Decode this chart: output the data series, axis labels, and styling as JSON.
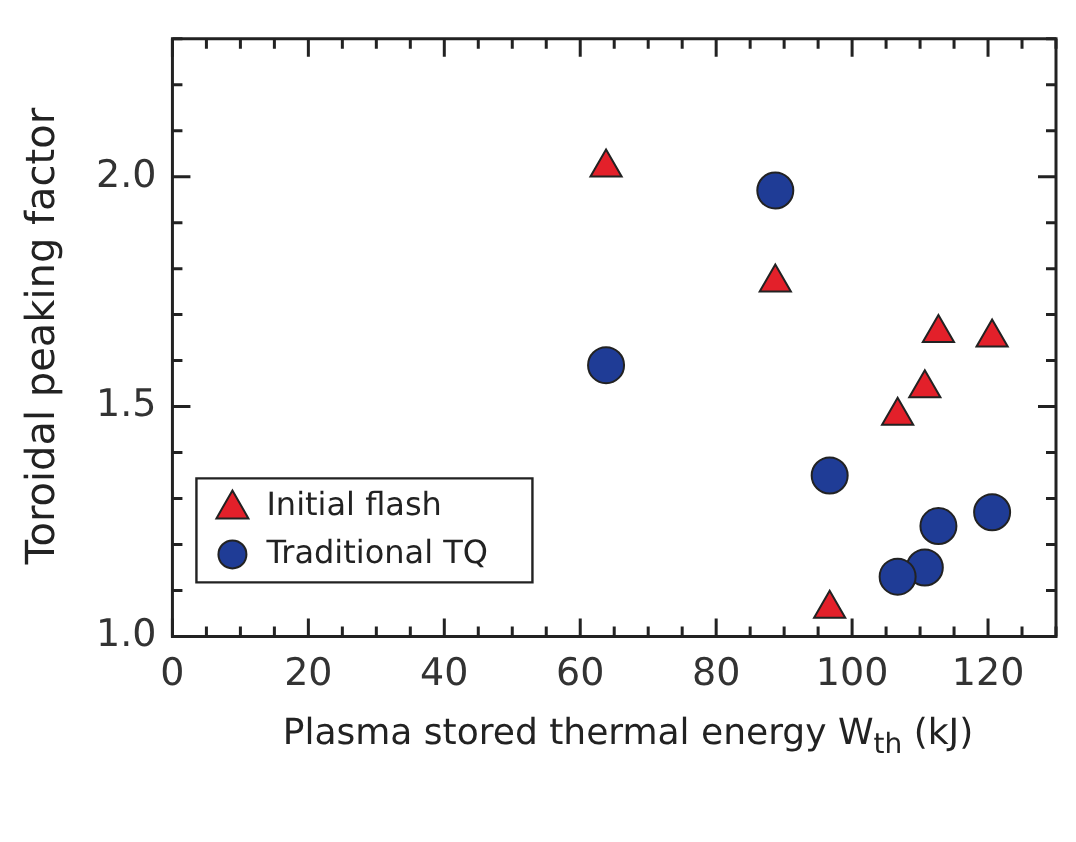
{
  "chart_data": {
    "type": "scatter",
    "xlabel": "Plasma stored thermal energy W$_{th}$ (kJ)",
    "ylabel": "Toroidal peaking factor",
    "series": [
      {
        "name": "Initial flash",
        "color": "#e3202a",
        "marker": "triangle",
        "x": [
          63.8,
          88.7,
          112.7,
          120.6,
          110.7,
          106.7,
          96.7
        ],
        "values": [
          2.02,
          1.77,
          1.66,
          1.65,
          1.54,
          1.48,
          1.06
        ]
      },
      {
        "name": "Traditional TQ",
        "color": "#1f3c96",
        "marker": "circle",
        "x": [
          63.8,
          88.7,
          96.7,
          120.6,
          112.7,
          110.7,
          106.7
        ],
        "values": [
          1.59,
          1.97,
          1.35,
          1.27,
          1.24,
          1.15,
          1.13
        ]
      }
    ],
    "xlim": [
      0,
      130
    ],
    "xticks": [
      0,
      {
        "value": 5,
        "label": null
      },
      {
        "value": 10,
        "label": null
      },
      {
        "value": 15,
        "label": null
      },
      20,
      {
        "value": 25,
        "label": null
      },
      {
        "value": 30,
        "label": null
      },
      {
        "value": 35,
        "label": null
      },
      40,
      {
        "value": 45,
        "label": null
      },
      {
        "value": 50,
        "label": null
      },
      {
        "value": 55,
        "label": null
      },
      60,
      {
        "value": 65,
        "label": null
      },
      {
        "value": 70,
        "label": null
      },
      {
        "value": 75,
        "label": null
      },
      80,
      {
        "value": 85,
        "label": null
      },
      {
        "value": 90,
        "label": null
      },
      {
        "value": 95,
        "label": null
      },
      100,
      {
        "value": 105,
        "label": null
      },
      {
        "value": 110,
        "label": null
      },
      {
        "value": 115,
        "label": null
      },
      120,
      {
        "value": 125,
        "label": null
      },
      {
        "value": 130,
        "label": null
      }
    ],
    "ylim": [
      1.0,
      2.3
    ],
    "yticks": [
      {
        "value": 1.0,
        "label": "1.0"
      },
      {
        "value": 1.1,
        "label": null
      },
      {
        "value": 1.2,
        "label": null
      },
      {
        "value": 1.3,
        "label": null
      },
      {
        "value": 1.4,
        "label": null
      },
      {
        "value": 1.5,
        "label": "1.5"
      },
      {
        "value": 1.6,
        "label": null
      },
      {
        "value": 1.7,
        "label": null
      },
      {
        "value": 1.8,
        "label": null
      },
      {
        "value": 1.9,
        "label": null
      },
      {
        "value": 2.0,
        "label": "2.0"
      },
      {
        "value": 2.1,
        "label": null
      },
      {
        "value": 2.2,
        "label": null
      },
      {
        "value": 2.3,
        "label": null
      }
    ],
    "grid": false,
    "legend": "bottom left"
  }
}
